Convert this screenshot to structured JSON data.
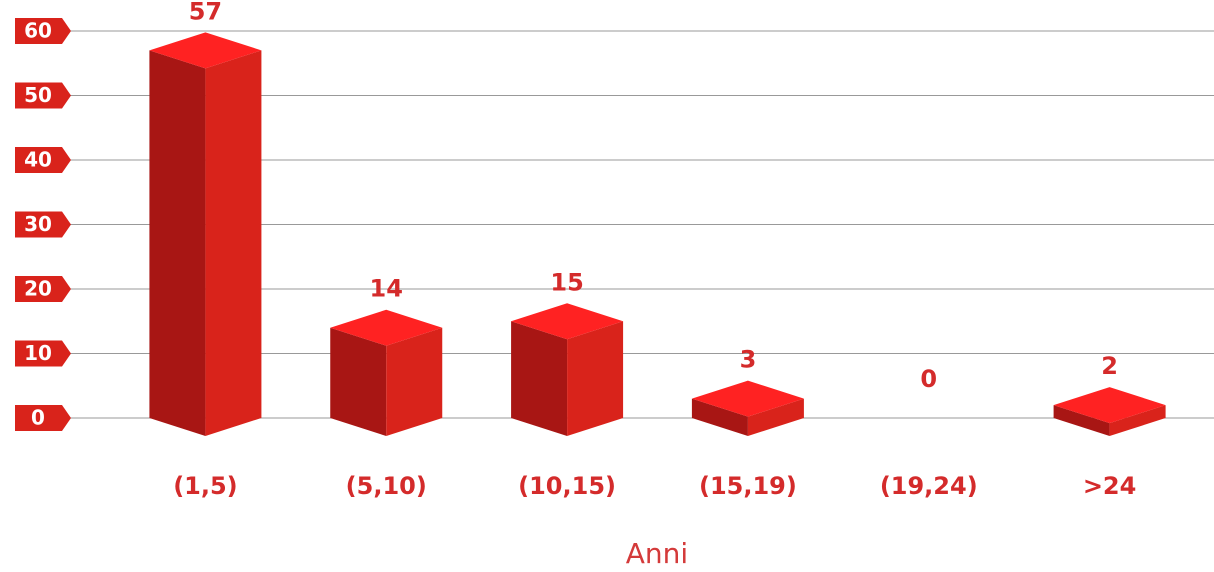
{
  "chart_data": {
    "type": "bar3d",
    "categories": [
      "(1,5)",
      "(5,10)",
      "(10,15)",
      "(15,19)",
      "(19,24)",
      ">24"
    ],
    "values": [
      57,
      14,
      15,
      3,
      0,
      2
    ],
    "x_label": "Anni",
    "colors": {
      "top": "#ff2222",
      "left": "#a81614",
      "right": "#d9231b"
    },
    "ylim": [
      0,
      60
    ],
    "yticks": [
      0,
      10,
      20,
      30,
      40,
      50,
      60
    ],
    "grid": true
  }
}
